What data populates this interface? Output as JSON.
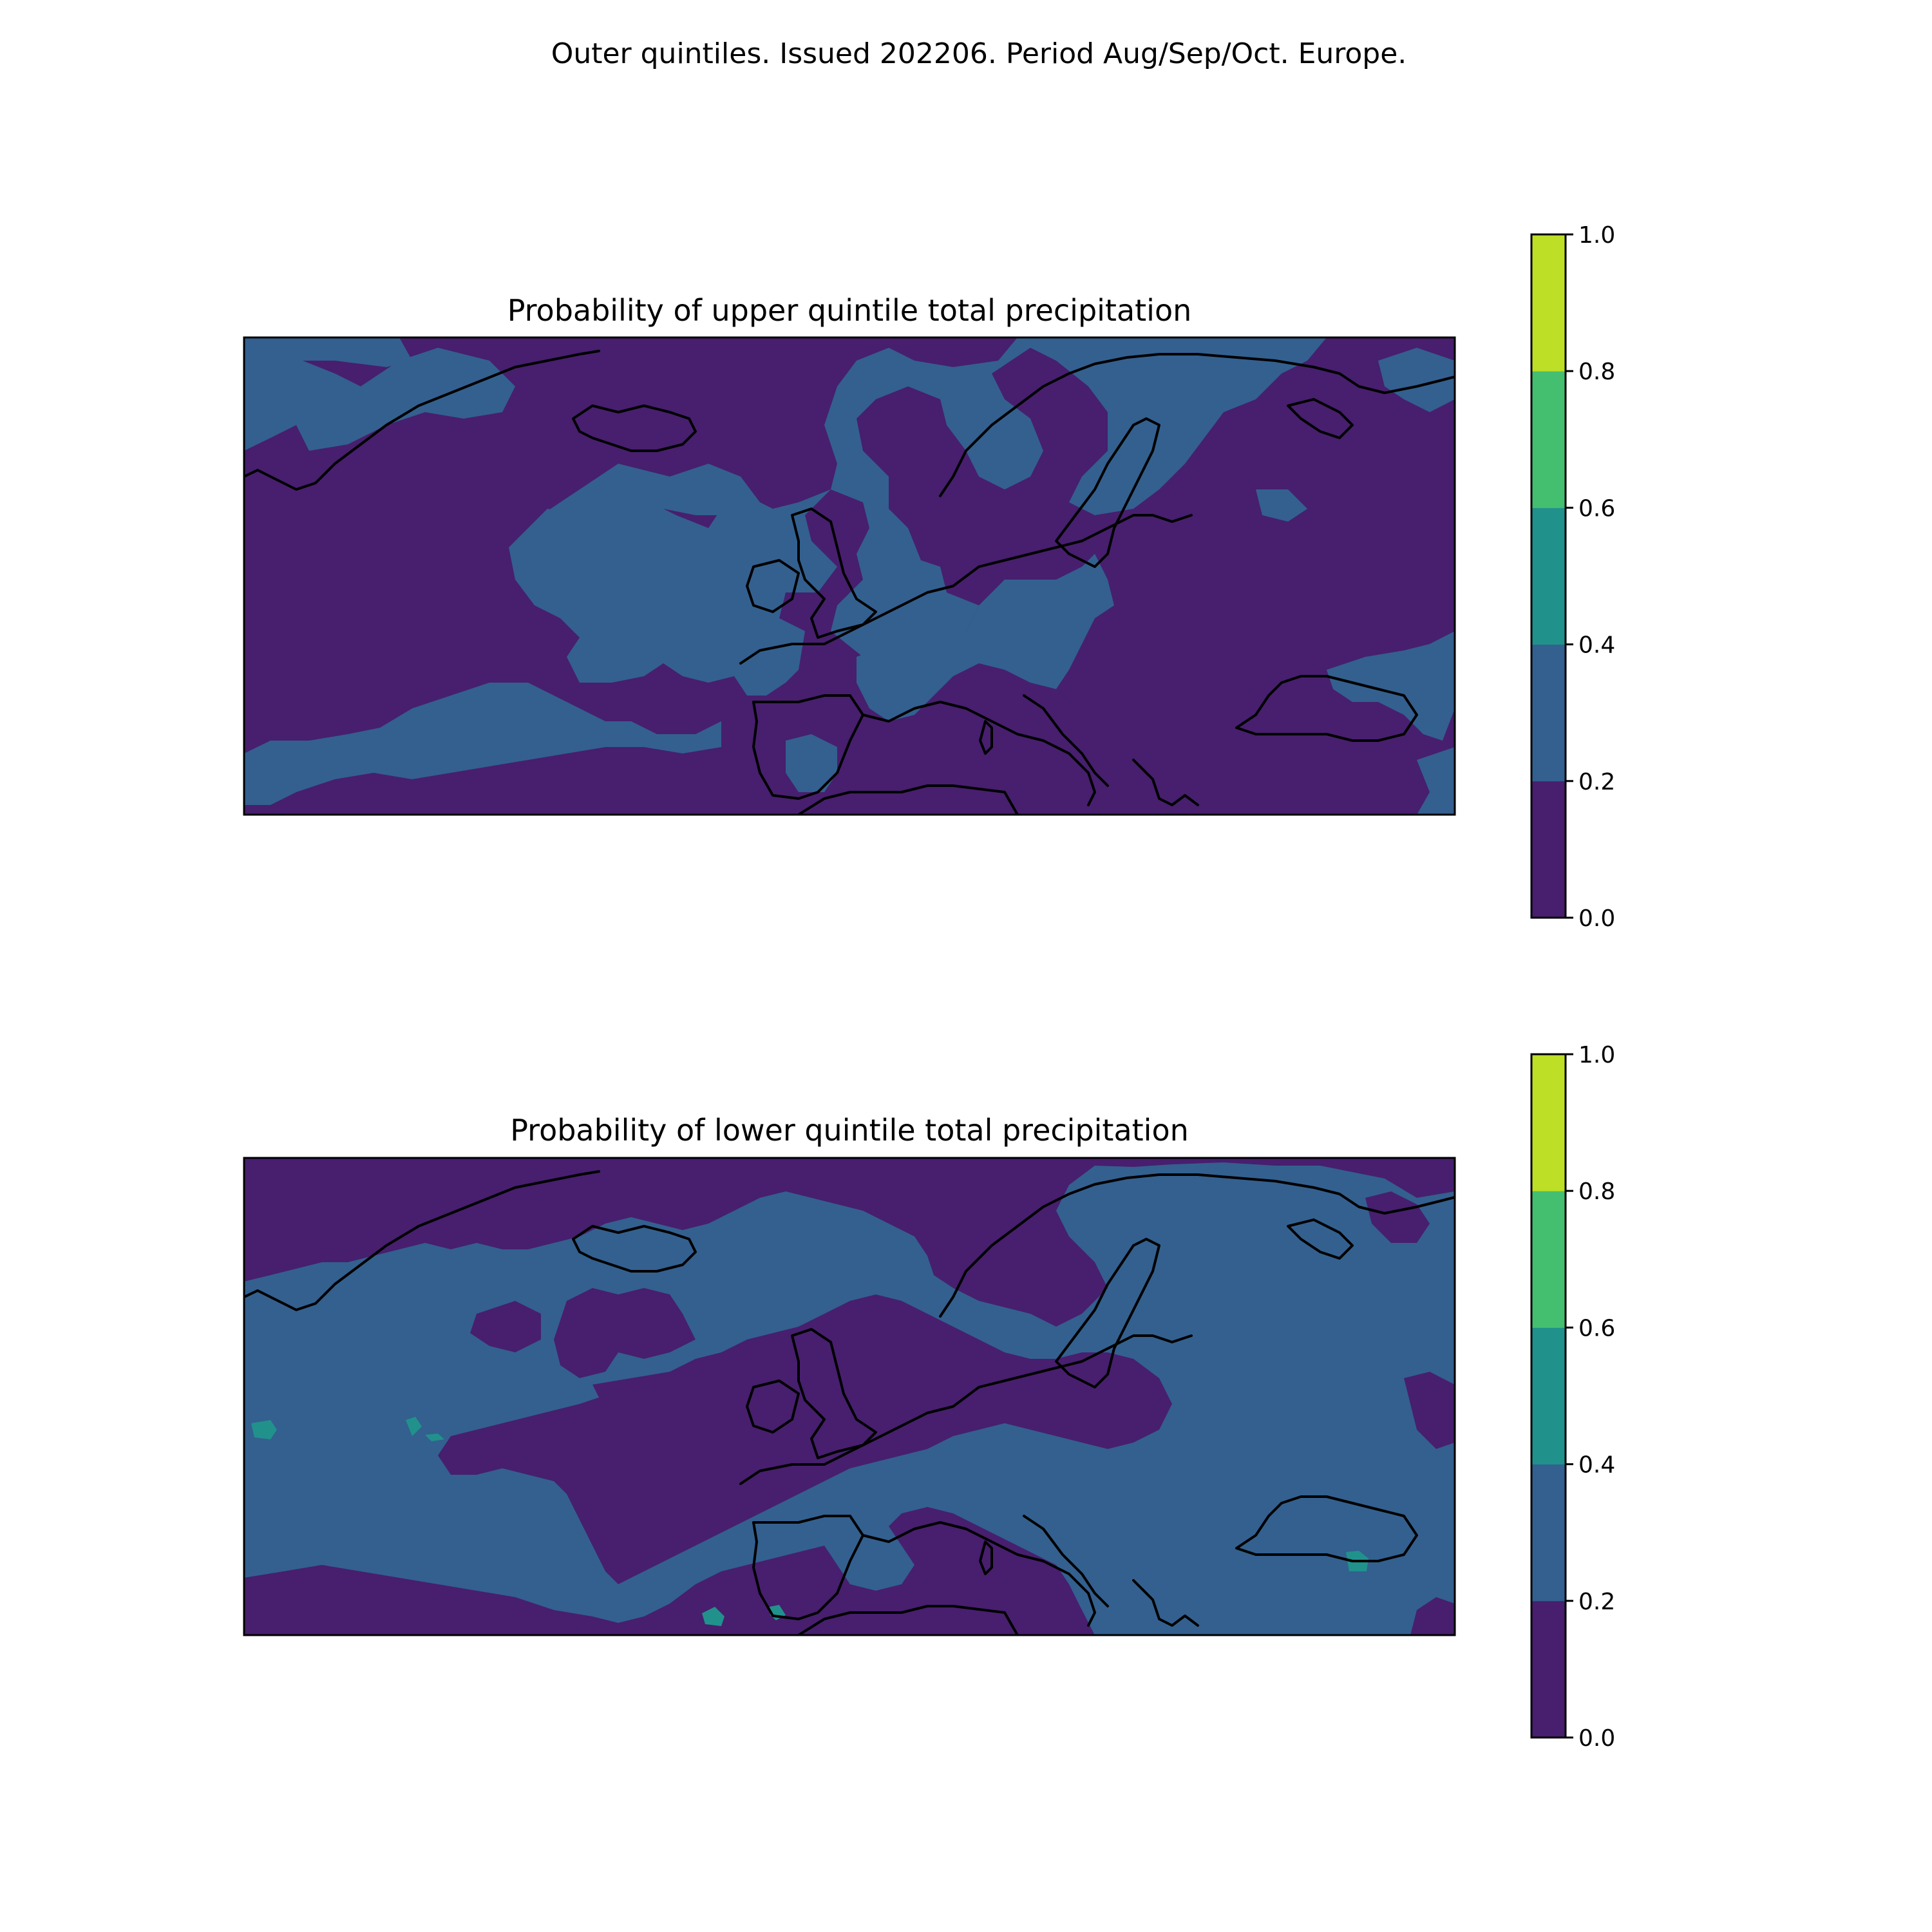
{
  "figure": {
    "suptitle": "Outer quintiles. Issued 202206. Period Aug/Sep/Oct. Europe."
  },
  "colors": {
    "bands": [
      "#440154",
      "#31688e",
      "#21918c",
      "#35b779",
      "#90d743",
      "#bddf26"
    ],
    "levels": [
      "#471f6e",
      "#33608f",
      "#21918c",
      "#44bf70",
      "#bddf26"
    ],
    "coastline": "#000000"
  },
  "panels": [
    {
      "id": "upper",
      "title": "Probability of upper quintile total precipitation",
      "colorbar": {
        "ticks": [
          "0.0",
          "0.2",
          "0.4",
          "0.6",
          "0.8",
          "1.0"
        ],
        "range": [
          0,
          1
        ]
      },
      "dominant_band": "0.0-0.2",
      "regions": [
        {
          "band": "0.2-0.4",
          "area": "Greenland and Arctic north-west"
        },
        {
          "band": "0.2-0.4",
          "area": "North Atlantic south of Iceland to France"
        },
        {
          "band": "0.2-0.4",
          "area": "Southern Scandinavia and Norwegian Sea"
        },
        {
          "band": "0.2-0.4",
          "area": "Central Europe and Balkans"
        },
        {
          "band": "0.2-0.4",
          "area": "Eastern Black Sea and Caucasus"
        },
        {
          "band": "0.2-0.4",
          "area": "Subtropical Atlantic near the Azores"
        }
      ]
    },
    {
      "id": "lower",
      "title": "Probability of lower quintile total precipitation",
      "colorbar": {
        "ticks": [
          "0.0",
          "0.2",
          "0.4",
          "0.6",
          "0.8",
          "1.0"
        ],
        "range": [
          0,
          1
        ]
      },
      "dominant_band": "0.2-0.4",
      "regions": [
        {
          "band": "0.0-0.2",
          "area": "Arctic and Greenland"
        },
        {
          "band": "0.0-0.2",
          "area": "British Isles, North Sea and western Europe"
        },
        {
          "band": "0.0-0.2",
          "area": "Iberia and subtropical Atlantic"
        },
        {
          "band": "0.4-0.6",
          "area": "Isolated spots in the Atlantic, North Africa and the Caucasus"
        }
      ]
    }
  ]
}
